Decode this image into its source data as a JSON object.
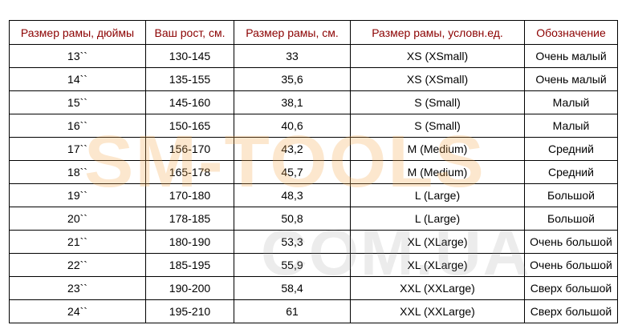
{
  "headers": [
    "Размер рамы, дюймы",
    "Ваш рост, см.",
    "Размер рамы, см.",
    "Размер рамы, условн.ед.",
    "Обозначение"
  ],
  "rows": [
    [
      "13``",
      "130-145",
      "33",
      "XS (XSmall)",
      "Очень малый"
    ],
    [
      "14``",
      "135-155",
      "35,6",
      "XS (XSmall)",
      "Очень малый"
    ],
    [
      "15``",
      "145-160",
      "38,1",
      "S (Small)",
      "Малый"
    ],
    [
      "16``",
      "150-165",
      "40,6",
      "S (Small)",
      "Малый"
    ],
    [
      "17``",
      "156-170",
      "43,2",
      "M (Medium)",
      "Средний"
    ],
    [
      "18``",
      "165-178",
      "45,7",
      "M (Medium)",
      "Средний"
    ],
    [
      "19``",
      "170-180",
      "48,3",
      "L (Large)",
      "Большой"
    ],
    [
      "20``",
      "178-185",
      "50,8",
      "L (Large)",
      "Большой"
    ],
    [
      "21``",
      "180-190",
      "53,3",
      "XL (XLarge)",
      "Очень большой"
    ],
    [
      "22``",
      "185-195",
      "55,9",
      "XL (XLarge)",
      "Очень большой"
    ],
    [
      "23``",
      "190-200",
      "58,4",
      "XXL (XXLarge)",
      "Сверх большой"
    ],
    [
      "24``",
      "195-210",
      "61",
      "XXL (XXLarge)",
      "Сверх большой"
    ]
  ],
  "watermark": {
    "line1": "SM-TOOLS",
    "line2": "COM.UA"
  },
  "colors": {
    "header_text": "#8b0000",
    "border": "#000000"
  }
}
